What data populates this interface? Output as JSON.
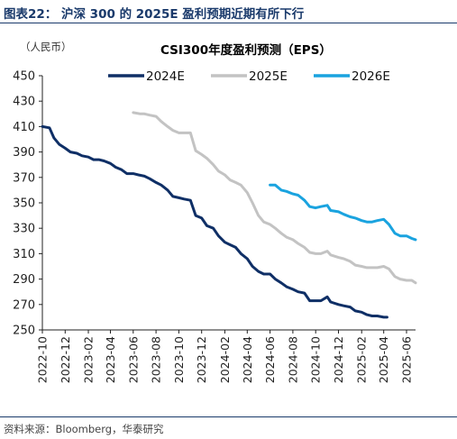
{
  "figure_title": "图表22： 沪深 300 的 2025E 盈利预期近期有所下行",
  "unit_label": "（人民币）",
  "source": "资料来源：Bloomberg，华泰研究",
  "chart_data": {
    "type": "line",
    "title": "CSI300年度盈利预测（EPS）",
    "xlabel": "",
    "ylabel": "",
    "x_ticks": [
      "2022-10",
      "2022-12",
      "2023-02",
      "2023-04",
      "2023-06",
      "2023-08",
      "2023-10",
      "2023-12",
      "2024-02",
      "2024-04",
      "2024-06",
      "2024-08",
      "2024-10",
      "2024-12",
      "2025-02",
      "2025-04",
      "2025-06"
    ],
    "ylim": [
      250,
      450
    ],
    "y_ticks": [
      250,
      270,
      290,
      310,
      330,
      350,
      370,
      390,
      410,
      430,
      450
    ],
    "legend_position": "top",
    "grid": false,
    "series": [
      {
        "name": "2024E",
        "color": "#0f2f66",
        "points": [
          [
            "2022-10-01",
            410
          ],
          [
            "2022-10-20",
            409
          ],
          [
            "2022-11-01",
            401
          ],
          [
            "2022-11-15",
            396
          ],
          [
            "2022-12-01",
            393
          ],
          [
            "2022-12-15",
            390
          ],
          [
            "2023-01-01",
            389
          ],
          [
            "2023-01-15",
            387
          ],
          [
            "2023-02-01",
            386
          ],
          [
            "2023-02-15",
            384
          ],
          [
            "2023-03-01",
            384
          ],
          [
            "2023-03-15",
            383
          ],
          [
            "2023-04-01",
            381
          ],
          [
            "2023-04-15",
            378
          ],
          [
            "2023-05-01",
            376
          ],
          [
            "2023-05-15",
            373
          ],
          [
            "2023-06-01",
            373
          ],
          [
            "2023-06-15",
            372
          ],
          [
            "2023-07-01",
            371
          ],
          [
            "2023-07-15",
            369
          ],
          [
            "2023-08-01",
            366
          ],
          [
            "2023-08-15",
            364
          ],
          [
            "2023-09-01",
            360
          ],
          [
            "2023-09-15",
            355
          ],
          [
            "2023-10-01",
            354
          ],
          [
            "2023-10-15",
            353
          ],
          [
            "2023-11-01",
            352
          ],
          [
            "2023-11-15",
            340
          ],
          [
            "2023-12-01",
            338
          ],
          [
            "2023-12-15",
            332
          ],
          [
            "2024-01-01",
            330
          ],
          [
            "2024-01-15",
            324
          ],
          [
            "2024-02-01",
            319
          ],
          [
            "2024-02-15",
            317
          ],
          [
            "2024-03-01",
            315
          ],
          [
            "2024-03-15",
            310
          ],
          [
            "2024-04-01",
            306
          ],
          [
            "2024-04-15",
            300
          ],
          [
            "2024-05-01",
            296
          ],
          [
            "2024-05-15",
            294
          ],
          [
            "2024-06-01",
            294
          ],
          [
            "2024-06-15",
            290
          ],
          [
            "2024-07-01",
            287
          ],
          [
            "2024-07-15",
            284
          ],
          [
            "2024-08-01",
            282
          ],
          [
            "2024-08-15",
            280
          ],
          [
            "2024-09-01",
            279
          ],
          [
            "2024-09-15",
            273
          ],
          [
            "2024-10-01",
            273
          ],
          [
            "2024-10-15",
            273
          ],
          [
            "2024-11-01",
            276
          ],
          [
            "2024-11-10",
            272
          ],
          [
            "2024-12-01",
            270
          ],
          [
            "2024-12-15",
            269
          ],
          [
            "2025-01-01",
            268
          ],
          [
            "2025-01-15",
            265
          ],
          [
            "2025-02-01",
            264
          ],
          [
            "2025-02-15",
            262
          ],
          [
            "2025-03-01",
            261
          ],
          [
            "2025-03-15",
            261
          ],
          [
            "2025-04-01",
            260
          ],
          [
            "2025-04-10",
            260
          ]
        ]
      },
      {
        "name": "2025E",
        "color": "#c3c3c3",
        "points": [
          [
            "2023-06-01",
            421
          ],
          [
            "2023-06-20",
            420
          ],
          [
            "2023-07-01",
            420
          ],
          [
            "2023-07-15",
            419
          ],
          [
            "2023-08-01",
            418
          ],
          [
            "2023-08-15",
            414
          ],
          [
            "2023-09-01",
            410
          ],
          [
            "2023-09-15",
            407
          ],
          [
            "2023-10-01",
            405
          ],
          [
            "2023-10-15",
            405
          ],
          [
            "2023-11-01",
            405
          ],
          [
            "2023-11-15",
            391
          ],
          [
            "2023-12-01",
            388
          ],
          [
            "2023-12-15",
            385
          ],
          [
            "2024-01-01",
            380
          ],
          [
            "2024-01-15",
            375
          ],
          [
            "2024-02-01",
            372
          ],
          [
            "2024-02-15",
            368
          ],
          [
            "2024-03-01",
            366
          ],
          [
            "2024-03-15",
            364
          ],
          [
            "2024-04-01",
            358
          ],
          [
            "2024-04-15",
            350
          ],
          [
            "2024-05-01",
            340
          ],
          [
            "2024-05-15",
            335
          ],
          [
            "2024-06-01",
            333
          ],
          [
            "2024-06-15",
            330
          ],
          [
            "2024-07-01",
            326
          ],
          [
            "2024-07-15",
            323
          ],
          [
            "2024-08-01",
            321
          ],
          [
            "2024-08-15",
            318
          ],
          [
            "2024-09-01",
            315
          ],
          [
            "2024-09-15",
            311
          ],
          [
            "2024-10-01",
            310
          ],
          [
            "2024-10-15",
            310
          ],
          [
            "2024-11-01",
            312
          ],
          [
            "2024-11-10",
            309
          ],
          [
            "2024-12-01",
            307
          ],
          [
            "2024-12-15",
            306
          ],
          [
            "2025-01-01",
            304
          ],
          [
            "2025-01-15",
            301
          ],
          [
            "2025-02-01",
            300
          ],
          [
            "2025-02-15",
            299
          ],
          [
            "2025-03-01",
            299
          ],
          [
            "2025-03-15",
            299
          ],
          [
            "2025-04-01",
            300
          ],
          [
            "2025-04-15",
            298
          ],
          [
            "2025-05-01",
            292
          ],
          [
            "2025-05-15",
            290
          ],
          [
            "2025-06-01",
            289
          ],
          [
            "2025-06-15",
            289
          ],
          [
            "2025-06-25",
            287
          ]
        ]
      },
      {
        "name": "2026E",
        "color": "#1aa3df",
        "points": [
          [
            "2024-06-01",
            364
          ],
          [
            "2024-06-15",
            364
          ],
          [
            "2024-07-01",
            360
          ],
          [
            "2024-07-15",
            359
          ],
          [
            "2024-08-01",
            357
          ],
          [
            "2024-08-15",
            356
          ],
          [
            "2024-09-01",
            352
          ],
          [
            "2024-09-15",
            347
          ],
          [
            "2024-10-01",
            346
          ],
          [
            "2024-10-15",
            347
          ],
          [
            "2024-11-01",
            348
          ],
          [
            "2024-11-10",
            344
          ],
          [
            "2024-12-01",
            343
          ],
          [
            "2024-12-15",
            341
          ],
          [
            "2025-01-01",
            339
          ],
          [
            "2025-01-15",
            338
          ],
          [
            "2025-02-01",
            336
          ],
          [
            "2025-02-15",
            335
          ],
          [
            "2025-03-01",
            335
          ],
          [
            "2025-03-15",
            336
          ],
          [
            "2025-04-01",
            337
          ],
          [
            "2025-04-15",
            333
          ],
          [
            "2025-05-01",
            326
          ],
          [
            "2025-05-15",
            324
          ],
          [
            "2025-06-01",
            324
          ],
          [
            "2025-06-15",
            322
          ],
          [
            "2025-06-25",
            321
          ]
        ]
      }
    ]
  }
}
